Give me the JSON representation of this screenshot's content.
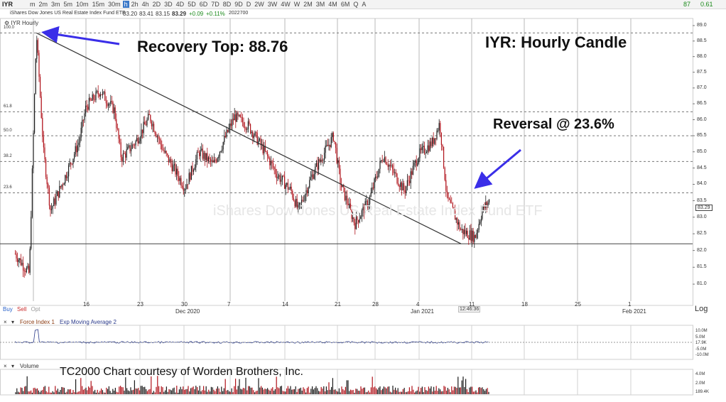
{
  "toolbar": {
    "symbol": "IYR",
    "timeframes": [
      "m",
      "2m",
      "3m",
      "5m",
      "10m",
      "15m",
      "30m",
      "h",
      "2h",
      "4h",
      "2D",
      "3D",
      "4D",
      "5D",
      "6D",
      "7D",
      "8D",
      "9D",
      "D",
      "2W",
      "3W",
      "4W",
      "W",
      "2M",
      "3M",
      "4M",
      "6M",
      "Q",
      "A"
    ],
    "active_timeframe": "h",
    "right_value_1": "87",
    "right_value_2": "0.61"
  },
  "quote_bar": {
    "name": "iShares Dow Jones US Real Estate Index Fund ETF",
    "open": "83.20",
    "high": "83.41",
    "low": "83.15",
    "close": "83.29",
    "change": "+0.09",
    "change_pct": "+0.11%",
    "date": "2022700"
  },
  "main_panel": {
    "label": "IYR Hourly",
    "watermark": "iShares Dow Jones US Real Estate Index Fund ETF",
    "clock": "12:46:36",
    "scale_label": "Log",
    "trade_buttons": {
      "buy": "Buy",
      "sell": "Sell",
      "opt": "Opt"
    },
    "current_price_tag": "83.29",
    "fib_levels": [
      {
        "label": "100.0",
        "price": 88.76
      },
      {
        "label": "61.8",
        "price": 86.25
      },
      {
        "label": "50.0",
        "price": 85.5
      },
      {
        "label": "38.2",
        "price": 84.7
      },
      {
        "label": "23.6",
        "price": 83.74
      }
    ]
  },
  "annotations": {
    "recovery_top": "Recovery Top:  88.76",
    "title": "IYR:  Hourly Candle",
    "reversal": "Reversal @ 23.6%",
    "credit": "TC2000 Chart courtesy of Worden Brothers, Inc."
  },
  "indicator_1": {
    "label_1": "Force Index 1",
    "label_2": "Exp Moving Average 2",
    "axis": [
      "10.0M",
      "5.0M",
      "17.9K",
      "-5.0M",
      "-10.0M"
    ]
  },
  "indicator_2": {
    "label": "Volume",
    "axis": [
      "4.0M",
      "2.0M",
      "189.4K"
    ]
  },
  "chart_data": {
    "type": "candlestick",
    "symbol": "IYR",
    "title": "IYR:  Hourly Candle",
    "yscale": "log",
    "ylim": [
      80.5,
      89.0
    ],
    "y_ticks": [
      81.0,
      81.5,
      82.0,
      82.5,
      83.0,
      83.5,
      84.0,
      84.5,
      85.0,
      85.5,
      86.0,
      86.5,
      87.0,
      87.5,
      88.0,
      88.5,
      89.0
    ],
    "x_ticks": [
      {
        "label": "16",
        "month": ""
      },
      {
        "label": "23",
        "month": ""
      },
      {
        "label": "30",
        "month": "Dec 2020"
      },
      {
        "label": "7",
        "month": ""
      },
      {
        "label": "14",
        "month": ""
      },
      {
        "label": "21",
        "month": ""
      },
      {
        "label": "28",
        "month": ""
      },
      {
        "label": "4",
        "month": "Jan 2021"
      },
      {
        "label": "11",
        "month": ""
      },
      {
        "label": "18",
        "month": ""
      },
      {
        "label": "25",
        "month": ""
      },
      {
        "label": "1",
        "month": "Feb 2021"
      }
    ],
    "price_path": [
      {
        "date": "2020-11-06",
        "price": 81.9
      },
      {
        "date": "2020-11-08",
        "price": 81.3
      },
      {
        "date": "2020-11-09",
        "price": 88.76
      },
      {
        "date": "2020-11-10",
        "price": 85.0
      },
      {
        "date": "2020-11-11",
        "price": 83.2
      },
      {
        "date": "2020-11-13",
        "price": 84.2
      },
      {
        "date": "2020-11-15",
        "price": 85.3
      },
      {
        "date": "2020-11-16",
        "price": 86.4
      },
      {
        "date": "2020-11-18",
        "price": 86.9
      },
      {
        "date": "2020-11-20",
        "price": 86.3
      },
      {
        "date": "2020-11-21",
        "price": 84.8
      },
      {
        "date": "2020-11-23",
        "price": 85.3
      },
      {
        "date": "2020-11-25",
        "price": 86.1
      },
      {
        "date": "2020-11-27",
        "price": 85.0
      },
      {
        "date": "2020-11-30",
        "price": 83.9
      },
      {
        "date": "2020-12-02",
        "price": 85.0
      },
      {
        "date": "2020-12-04",
        "price": 84.6
      },
      {
        "date": "2020-12-07",
        "price": 86.1
      },
      {
        "date": "2020-12-09",
        "price": 85.8
      },
      {
        "date": "2020-12-11",
        "price": 85.1
      },
      {
        "date": "2020-12-13",
        "price": 84.3
      },
      {
        "date": "2020-12-15",
        "price": 83.8
      },
      {
        "date": "2020-12-16",
        "price": 83.2
      },
      {
        "date": "2020-12-18",
        "price": 84.3
      },
      {
        "date": "2020-12-21",
        "price": 85.5
      },
      {
        "date": "2020-12-22",
        "price": 84.0
      },
      {
        "date": "2020-12-24",
        "price": 82.8
      },
      {
        "date": "2020-12-26",
        "price": 83.5
      },
      {
        "date": "2020-12-28",
        "price": 84.9
      },
      {
        "date": "2020-12-31",
        "price": 83.8
      },
      {
        "date": "2021-01-02",
        "price": 84.9
      },
      {
        "date": "2021-01-04",
        "price": 85.3
      },
      {
        "date": "2021-01-05",
        "price": 85.9
      },
      {
        "date": "2021-01-06",
        "price": 83.6
      },
      {
        "date": "2021-01-08",
        "price": 82.6
      },
      {
        "date": "2021-01-10",
        "price": 82.4
      },
      {
        "date": "2021-01-11",
        "price": 83.2
      },
      {
        "date": "2021-01-12",
        "price": 83.5
      }
    ],
    "trendline": {
      "from": {
        "date": "2020-11-09",
        "price": 88.76
      },
      "to": {
        "date": "2021-01-08",
        "price": 82.2
      }
    },
    "support_line": 82.2
  }
}
